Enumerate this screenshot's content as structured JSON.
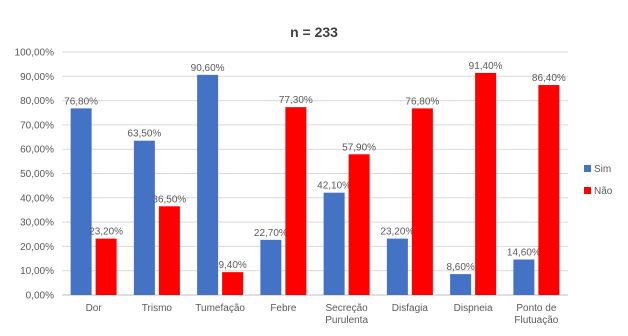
{
  "chart_data": {
    "type": "bar",
    "title": "n = 233",
    "categories": [
      "Dor",
      "Trismo",
      "Tumefação",
      "Febre",
      "Secreção Purulenta",
      "Disfagia",
      "Dispneia",
      "Ponto de Flutuação"
    ],
    "category_lines": [
      [
        "Dor"
      ],
      [
        "Trismo"
      ],
      [
        "Tumefação"
      ],
      [
        "Febre"
      ],
      [
        "Secreção",
        "Purulenta"
      ],
      [
        "Disfagia"
      ],
      [
        "Dispneia"
      ],
      [
        "Ponto de",
        "Flutuação"
      ]
    ],
    "series": [
      {
        "name": "Sim",
        "color": "#4472C4",
        "values": [
          76.8,
          63.5,
          90.6,
          22.7,
          42.1,
          23.2,
          8.6,
          14.6
        ],
        "labels": [
          "76,80%",
          "63,50%",
          "90,60%",
          "22,70%",
          "42,10%",
          "23,20%",
          "8,60%",
          "14,60%"
        ]
      },
      {
        "name": "Não",
        "color": "#FF0000",
        "values": [
          23.2,
          36.5,
          9.4,
          77.3,
          57.9,
          76.8,
          91.4,
          86.4
        ],
        "labels": [
          "23,20%",
          "36,50%",
          "9,40%",
          "77,30%",
          "57,90%",
          "76,80%",
          "91,40%",
          "86,40%"
        ]
      }
    ],
    "ylim": [
      0,
      100
    ],
    "yticks": [
      0,
      10,
      20,
      30,
      40,
      50,
      60,
      70,
      80,
      90,
      100
    ],
    "ytick_labels": [
      "0,00%",
      "10,00%",
      "20,00%",
      "30,00%",
      "40,00%",
      "50,00%",
      "60,00%",
      "70,00%",
      "80,00%",
      "90,00%",
      "100,00%"
    ],
    "xlabel": "",
    "ylabel": "",
    "grid": true,
    "legend_position": "right"
  }
}
